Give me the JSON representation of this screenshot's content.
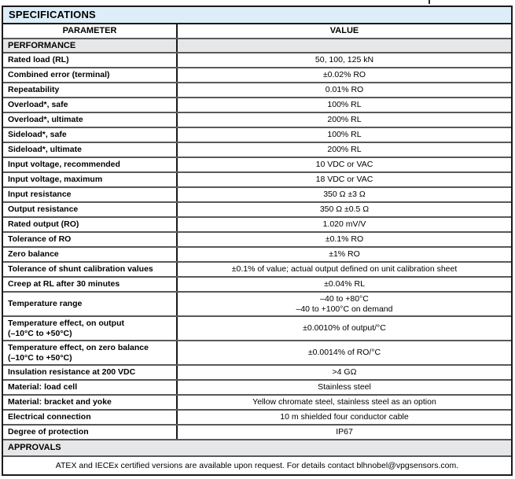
{
  "colors": {
    "title_bg": "#ddeef9",
    "section_bg": "#e6e7e8",
    "outer_border": "#1a1a1a",
    "row_border": "#59595b",
    "text": "#000000"
  },
  "table": {
    "title": "SPECIFICATIONS",
    "columns": {
      "parameter": "PARAMETER",
      "value": "VALUE"
    },
    "sections": [
      {
        "header": "PERFORMANCE",
        "full_span": false,
        "rows": [
          {
            "parameter": [
              "Rated load (RL)"
            ],
            "value": [
              "50, 100, 125 kN"
            ]
          },
          {
            "parameter": [
              "Combined error (terminal)"
            ],
            "value": [
              "±0.02% RO"
            ]
          },
          {
            "parameter": [
              "Repeatability"
            ],
            "value": [
              "0.01% RO"
            ]
          },
          {
            "parameter": [
              "Overload*, safe"
            ],
            "value": [
              "100% RL"
            ]
          },
          {
            "parameter": [
              "Overload*, ultimate"
            ],
            "value": [
              "200% RL"
            ]
          },
          {
            "parameter": [
              "Sideload*, safe"
            ],
            "value": [
              "100% RL"
            ]
          },
          {
            "parameter": [
              "Sideload*, ultimate"
            ],
            "value": [
              "200% RL"
            ]
          },
          {
            "parameter": [
              "Input voltage, recommended"
            ],
            "value": [
              "10 VDC or VAC"
            ]
          },
          {
            "parameter": [
              "Input voltage, maximum"
            ],
            "value": [
              "18 VDC or VAC"
            ]
          },
          {
            "parameter": [
              "Input resistance"
            ],
            "value": [
              "350 Ω ±3 Ω"
            ]
          },
          {
            "parameter": [
              "Output resistance"
            ],
            "value": [
              "350 Ω ±0.5 Ω"
            ]
          },
          {
            "parameter": [
              "Rated output (RO)"
            ],
            "value": [
              "1.020 mV/V"
            ]
          },
          {
            "parameter": [
              "Tolerance of RO"
            ],
            "value": [
              "±0.1% RO"
            ]
          },
          {
            "parameter": [
              "Zero balance"
            ],
            "value": [
              "±1% RO"
            ]
          },
          {
            "parameter": [
              "Tolerance of shunt calibration values"
            ],
            "value": [
              "±0.1% of value; actual output defined on unit calibration sheet"
            ]
          },
          {
            "parameter": [
              "Creep at RL after 30 minutes"
            ],
            "value": [
              "±0.04% RL"
            ]
          },
          {
            "parameter": [
              "Temperature range"
            ],
            "value": [
              "–40 to +80°C",
              "–40 to +100°C on demand"
            ]
          },
          {
            "parameter": [
              "Temperature effect, on output",
              "(–10°C to +50°C)"
            ],
            "value": [
              "±0.0010% of output/°C"
            ]
          },
          {
            "parameter": [
              "Temperature effect, on zero balance",
              "(–10°C to +50°C)"
            ],
            "value": [
              "±0.0014% of RO/°C"
            ]
          },
          {
            "parameter": [
              "Insulation resistance at 200 VDC"
            ],
            "value": [
              ">4 GΩ"
            ]
          },
          {
            "parameter": [
              "Material: load cell"
            ],
            "value": [
              "Stainless steel"
            ]
          },
          {
            "parameter": [
              "Material: bracket and yoke"
            ],
            "value": [
              "Yellow chromate steel, stainless steel as an option"
            ]
          },
          {
            "parameter": [
              "Electrical connection"
            ],
            "value": [
              "10 m shielded four conductor cable"
            ]
          },
          {
            "parameter": [
              "Degree of protection"
            ],
            "value": [
              "IP67"
            ]
          }
        ]
      },
      {
        "header": "APPROVALS",
        "full_span": true,
        "rows": []
      }
    ],
    "footer": "ATEX and IECEx certified versions are available upon request. For details contact blhnobel@vpgsensors.com."
  }
}
